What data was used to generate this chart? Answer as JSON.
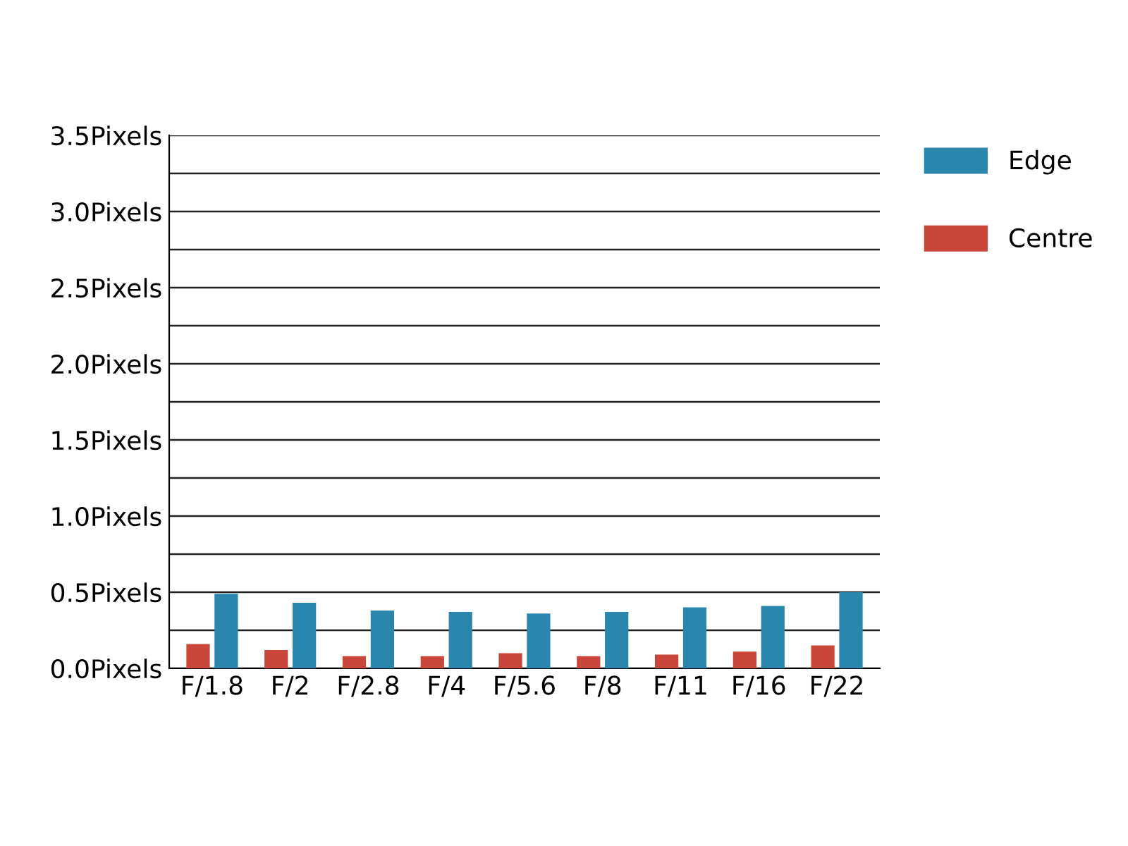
{
  "chart_data": {
    "type": "bar",
    "categories": [
      "F/1.8",
      "F/2",
      "F/2.8",
      "F/4",
      "F/5.6",
      "F/8",
      "F/11",
      "F/16",
      "F/22"
    ],
    "series": [
      {
        "name": "Centre",
        "color": "#c8463a",
        "values": [
          0.16,
          0.12,
          0.08,
          0.08,
          0.1,
          0.08,
          0.09,
          0.11,
          0.15
        ]
      },
      {
        "name": "Edge",
        "color": "#2a86ad",
        "values": [
          0.49,
          0.43,
          0.38,
          0.37,
          0.36,
          0.37,
          0.4,
          0.41,
          0.5
        ]
      }
    ],
    "ylim": [
      0,
      3.5
    ],
    "yticks": [
      {
        "value": 0,
        "label": "0.0Pixels"
      },
      {
        "value": 0.25,
        "label": null
      },
      {
        "value": 0.5,
        "label": "0.5Pixels"
      },
      {
        "value": 0.75,
        "label": null
      },
      {
        "value": 1.0,
        "label": "1.0Pixels"
      },
      {
        "value": 1.25,
        "label": null
      },
      {
        "value": 1.5,
        "label": "1.5Pixels"
      },
      {
        "value": 1.75,
        "label": null
      },
      {
        "value": 2.0,
        "label": "2.0Pixels"
      },
      {
        "value": 2.25,
        "label": null
      },
      {
        "value": 2.5,
        "label": "2.5Pixels"
      },
      {
        "value": 2.75,
        "label": null
      },
      {
        "value": 3.0,
        "label": "3.0Pixels"
      },
      {
        "value": 3.25,
        "label": null
      },
      {
        "value": 3.5,
        "label": "3.5Pixels"
      }
    ],
    "grid": "y",
    "legend": "top right"
  }
}
